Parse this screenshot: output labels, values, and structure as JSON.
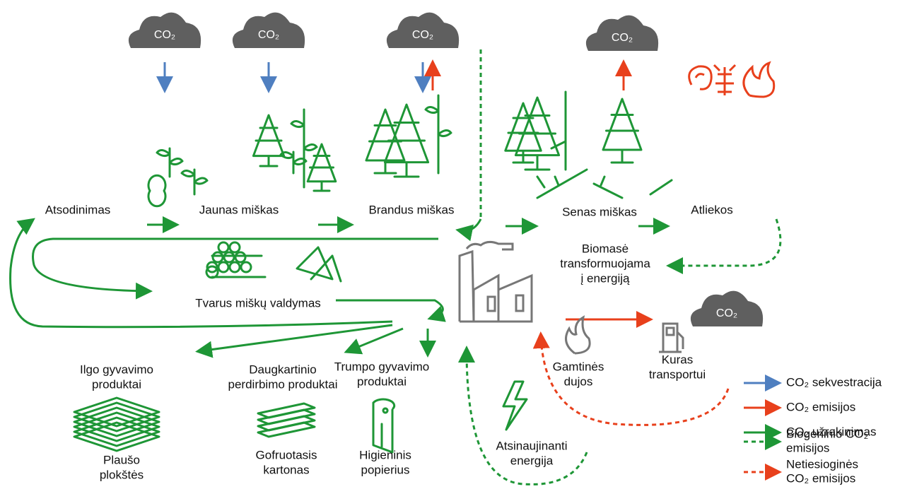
{
  "clouds": [
    "CO₂",
    "CO₂",
    "CO₂",
    "CO₂",
    "CO₂"
  ],
  "stages": [
    "Atsodinimas",
    "Jaunas miškas",
    "Brandus miškas",
    "Senas miškas",
    "Atliekos"
  ],
  "management": "Tvarus miškų valdymas",
  "energy": {
    "biomass": [
      "Biomasė",
      "transformuojama",
      "į energiją"
    ],
    "natural_gas": [
      "Gamtinės",
      "dujos"
    ],
    "fuel": [
      "Kuras",
      "transportui"
    ],
    "renewable": [
      "Atsinaujinanti",
      "energija"
    ]
  },
  "products": [
    {
      "category": [
        "Ilgo gyvavimo",
        "produktai"
      ],
      "item": [
        "Plaušo",
        "plokštės"
      ]
    },
    {
      "category": [
        "Daugkartinio",
        "perdirbimo produktai"
      ],
      "item": [
        "Gofruotasis",
        "kartonas"
      ]
    },
    {
      "category": [
        "Trumpo gyvavimo",
        "produktai"
      ],
      "item": [
        "Higieninis",
        "popierius"
      ]
    }
  ],
  "legend": [
    {
      "label": [
        "CO₂ sekvestracija"
      ]
    },
    {
      "label": [
        "CO₂ emisijos"
      ]
    },
    {
      "label": [
        "CO₂ užrakinimas"
      ]
    },
    {
      "label": [
        "Biogeninio CO₂",
        "emisijos"
      ]
    },
    {
      "label": [
        "Netiesioginės",
        "CO₂ emisijos"
      ]
    }
  ]
}
